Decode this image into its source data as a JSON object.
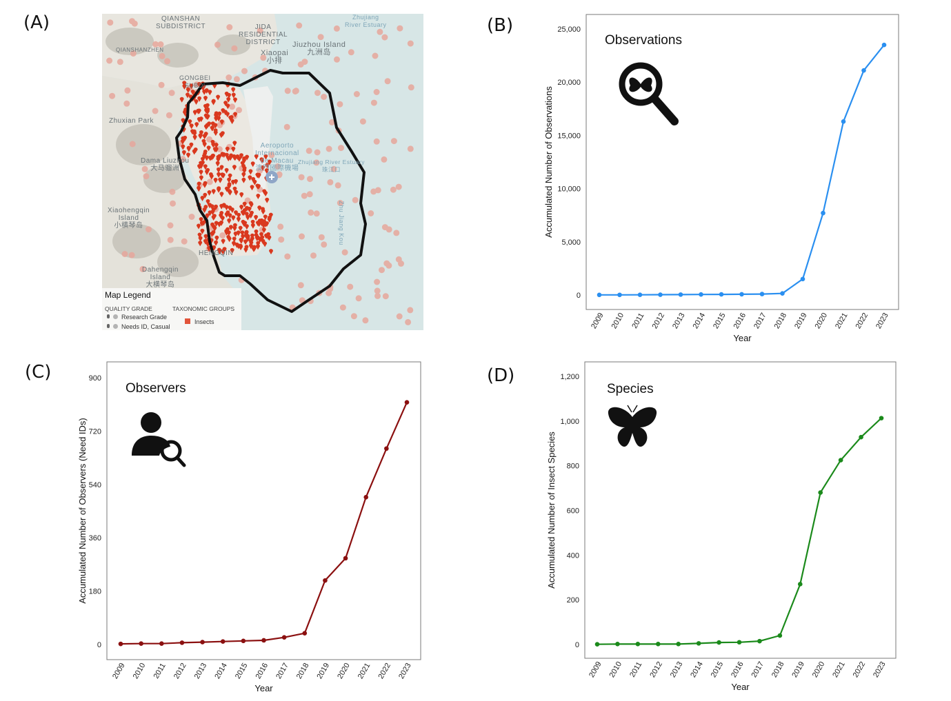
{
  "panels": {
    "a": "(A)",
    "b": "(B)",
    "c": "(C)",
    "d": "(D)"
  },
  "map": {
    "labels": {
      "qianshan": "QIANSHAN\nSUBDISTRICT",
      "jida": "JIDA\nRESIDENTIAL\nDISTRICT",
      "qianshanzhen": "QIANSHANZHEN",
      "xiaopai": "Xiaopai\n小排",
      "jiuzhou": "Jiuzhou Island\n九洲岛",
      "estuary_top": "Zhujiang\nRiver Estuary",
      "gongbei": "GONGBEI\nSUBDI",
      "zhuxian": "Zhuxian Park",
      "airport": "Aeroporto\nInternacional\nde Macau\n澳門國際機場",
      "estuary_mid": "Zhujiang River Estuary\n珠江口",
      "damaliuzhou": "Dama Liuzhou\n大马骝洲",
      "xiaohengqin": "Xiaohengqin\nIsland\n小横琴岛",
      "hengqin": "HENGQIN",
      "dahengqin": "Dahengqin\nIsland\n大横琴岛",
      "zhu_jiang_kou": "Zhu Jiang Kou"
    },
    "legend": {
      "title": "Map Legend",
      "quality_header": "QUALITY GRADE",
      "research_grade": "Research Grade",
      "needs_id": "Needs ID, Casual",
      "taxonomic_header": "TAXONOMIC GROUPS",
      "insects": "Insects"
    },
    "colors": {
      "water": "#d7e6e6",
      "land": "#ece9e2",
      "insect_marker": "#d9381e",
      "grey_dot": "#e7a79c",
      "boundary": "#111111"
    }
  },
  "chart_data": [
    {
      "id": "B",
      "type": "line",
      "title": "Observations",
      "icon": "magnifier-butterfly-icon",
      "xlabel": "Year",
      "ylabel": "Accumulated Number of Observations",
      "x": [
        "2009",
        "2010",
        "2011",
        "2012",
        "2013",
        "2014",
        "2015",
        "2016",
        "2017",
        "2018",
        "2019",
        "2020",
        "2021",
        "2022",
        "2023"
      ],
      "values": [
        10,
        15,
        20,
        30,
        40,
        50,
        60,
        70,
        90,
        150,
        1500,
        7700,
        16300,
        21100,
        23500
      ],
      "yticks": [
        "0",
        "5,000",
        "10,000",
        "15,000",
        "20,000",
        "25,000"
      ],
      "ytick_values": [
        0,
        5000,
        10000,
        15000,
        20000,
        25000
      ],
      "ylim": [
        0,
        25000
      ],
      "color": "#2a8ff0"
    },
    {
      "id": "C",
      "type": "line",
      "title": "Observers",
      "icon": "person-search-icon",
      "xlabel": "Year",
      "ylabel": "Accumulated Number of Observers (Need IDs)",
      "x": [
        "2009",
        "2010",
        "2011",
        "2012",
        "2013",
        "2014",
        "2015",
        "2016",
        "2017",
        "2018",
        "2019",
        "2020",
        "2021",
        "2022",
        "2023"
      ],
      "values": [
        2,
        3,
        3,
        6,
        8,
        10,
        12,
        14,
        24,
        38,
        216,
        291,
        497,
        661,
        817
      ],
      "yticks": [
        "0",
        "180",
        "360",
        "540",
        "720",
        "900"
      ],
      "ytick_values": [
        0,
        180,
        360,
        540,
        720,
        900
      ],
      "ylim": [
        0,
        900
      ],
      "color": "#8b1010"
    },
    {
      "id": "D",
      "type": "line",
      "title": "Species",
      "icon": "butterfly-icon",
      "xlabel": "Year",
      "ylabel": "Accumulated Number of Insect Species",
      "x": [
        "2009",
        "2010",
        "2011",
        "2012",
        "2013",
        "2014",
        "2015",
        "2016",
        "2017",
        "2018",
        "2019",
        "2020",
        "2021",
        "2022",
        "2023"
      ],
      "values": [
        1,
        2,
        2,
        2,
        2,
        5,
        9,
        10,
        15,
        40,
        270,
        680,
        825,
        928,
        1013
      ],
      "yticks": [
        "0",
        "200",
        "400",
        "600",
        "800",
        "1,000",
        "1,200"
      ],
      "ytick_values": [
        0,
        200,
        400,
        600,
        800,
        1000,
        1200
      ],
      "ylim": [
        0,
        1200
      ],
      "color": "#1b8a1b"
    }
  ]
}
